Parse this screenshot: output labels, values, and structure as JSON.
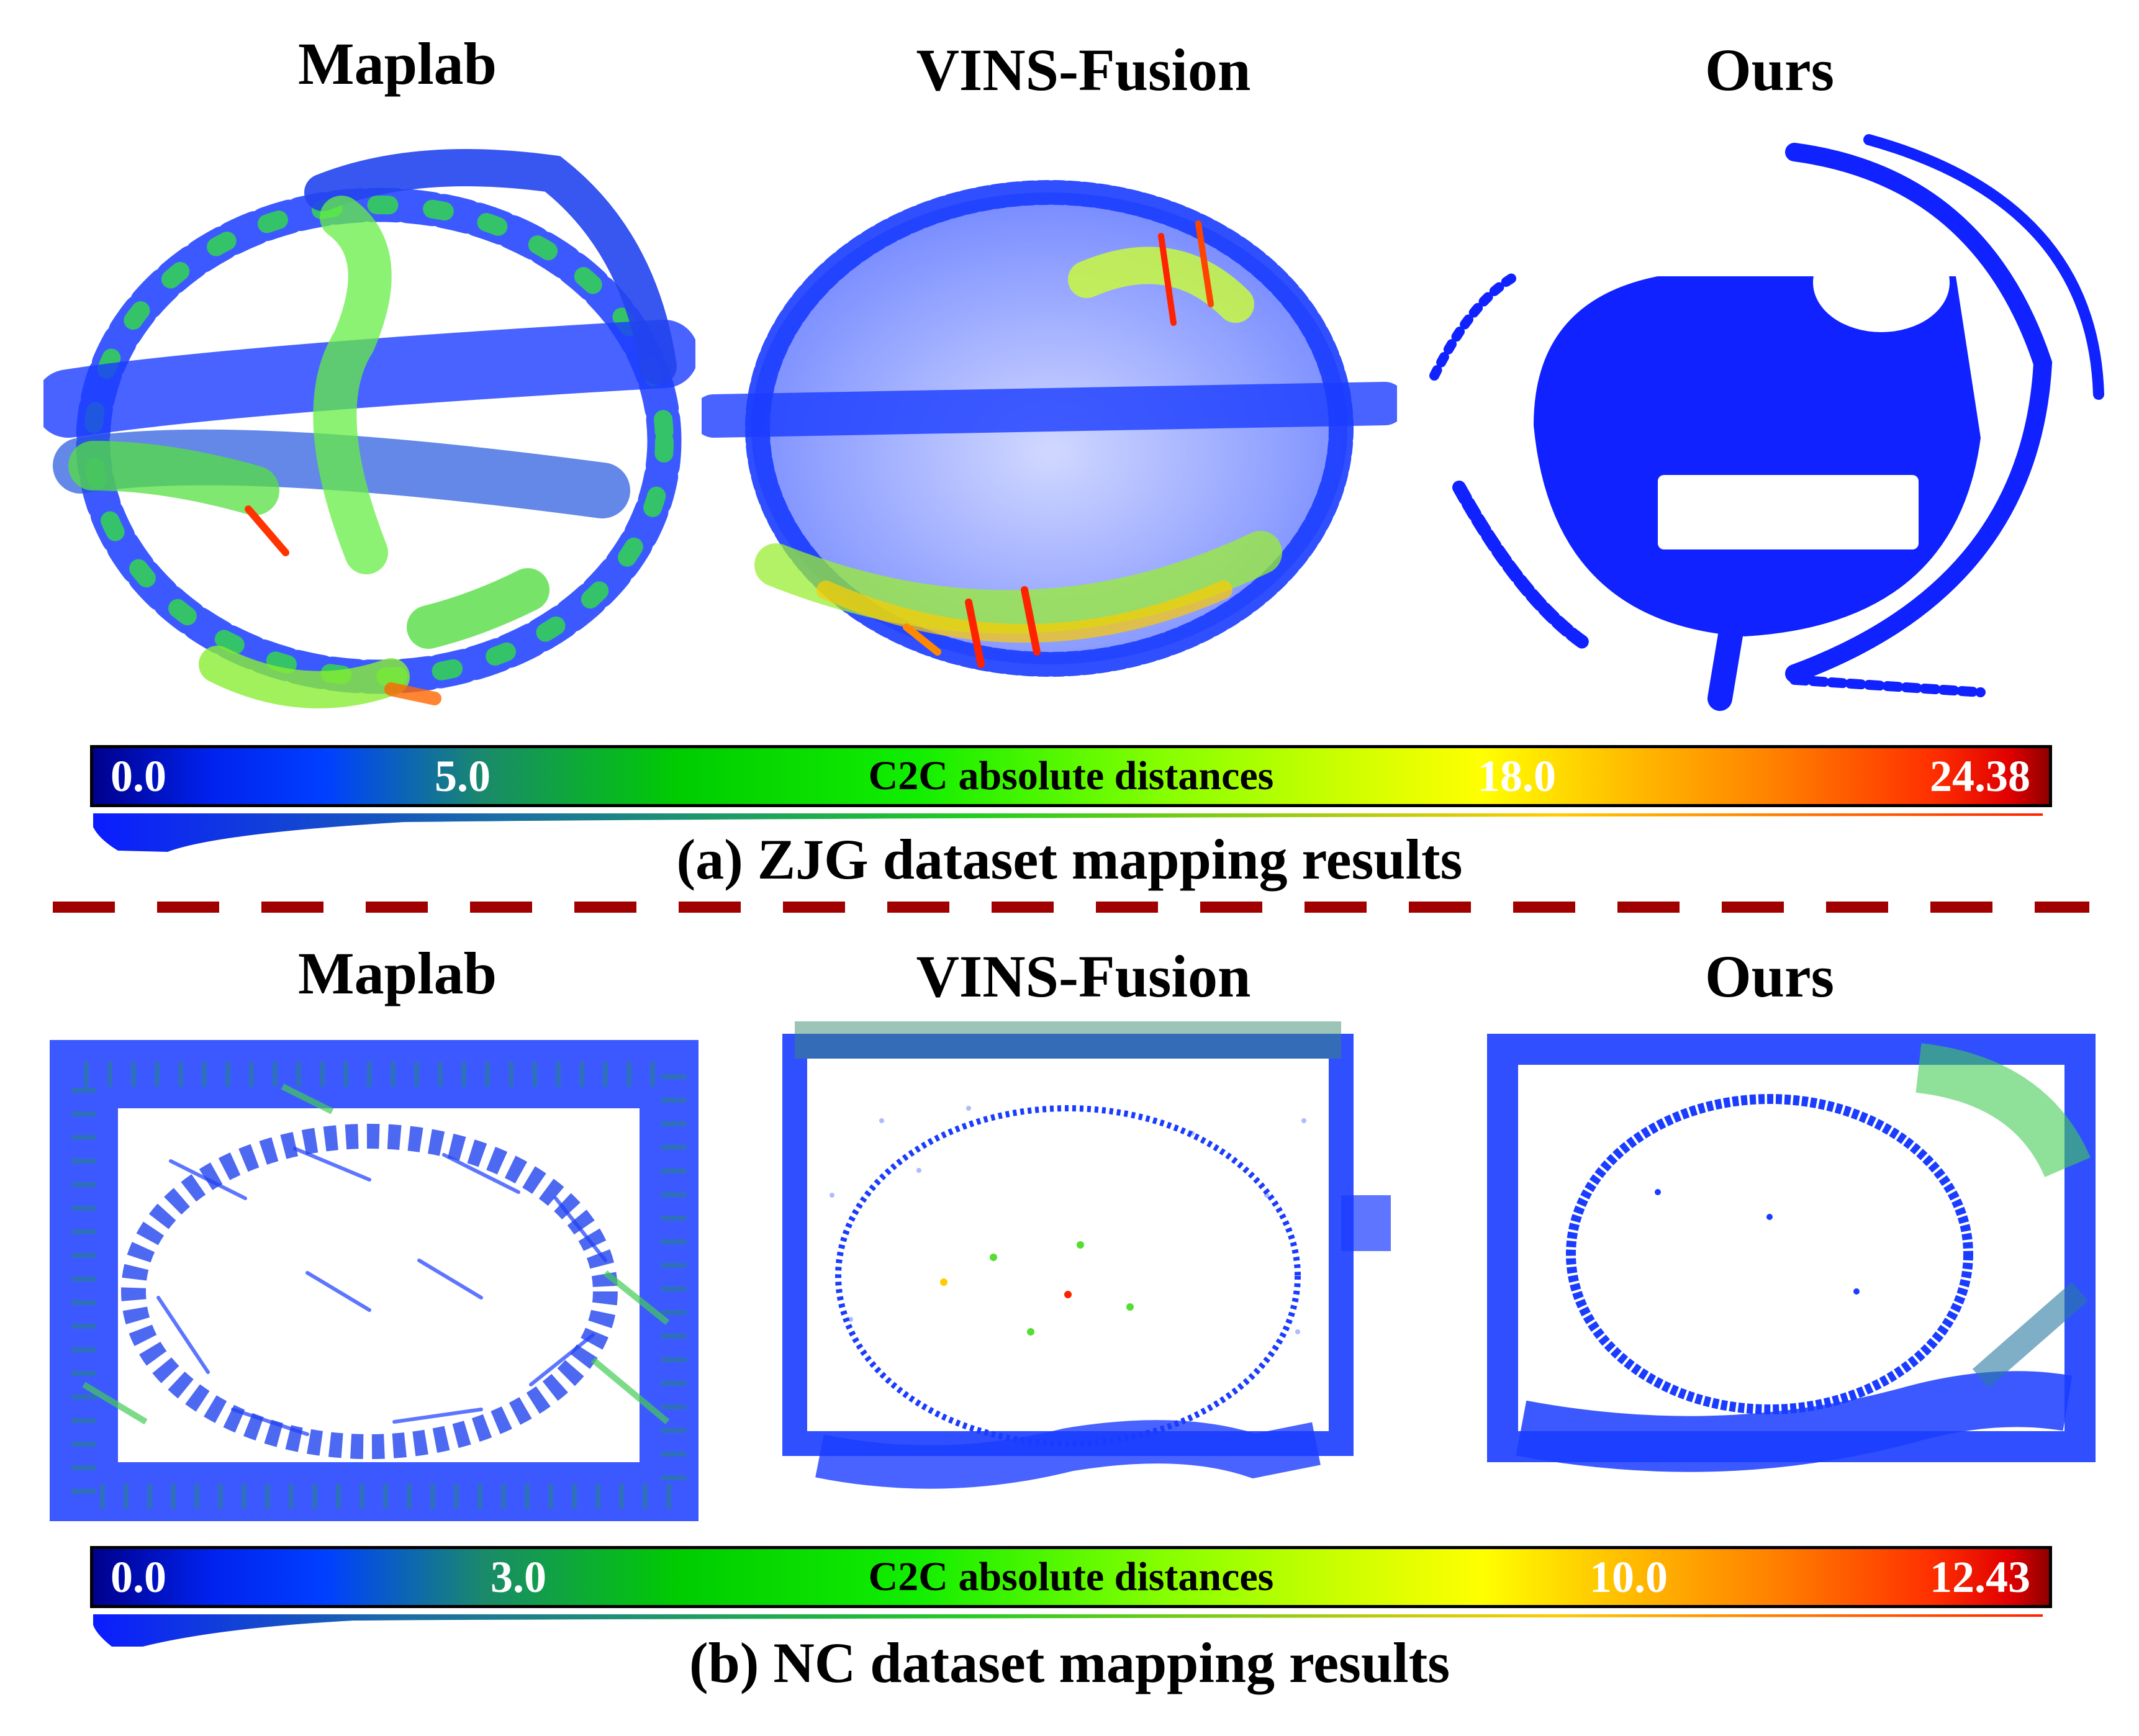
{
  "section_a": {
    "titles": [
      "Maplab",
      "VINS-Fusion",
      "Ours"
    ],
    "colorbar": {
      "min_label": "0.0",
      "tick1_label": "5.0",
      "center_label": "C2C absolute distances",
      "tick2_label": "18.0",
      "max_label": "24.38"
    },
    "caption": "(a) ZJG dataset mapping results"
  },
  "section_b": {
    "titles": [
      "Maplab",
      "VINS-Fusion",
      "Ours"
    ],
    "colorbar": {
      "min_label": "0.0",
      "tick1_label": "3.0",
      "center_label": "C2C absolute distances",
      "tick2_label": "10.0",
      "max_label": "12.43"
    },
    "caption": "(b) NC dataset mapping results"
  },
  "colors": {
    "divider": "#a00000",
    "low": "#0a1cff",
    "mid": "#22dd22",
    "high": "#ff2200"
  }
}
